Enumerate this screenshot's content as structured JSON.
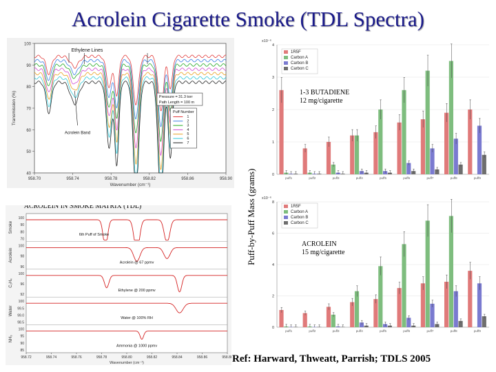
{
  "title": "Acrolein Cigarette Smoke (TDL Spectra)",
  "ylabel_mass": "Puff-by-Puff Mass (grams)",
  "reference": "Ref: Harward, Thweatt, Parrish; TDLS 2005",
  "chart_data": [
    {
      "type": "line",
      "id": "transmission",
      "xlabel": "Wavenumber (cm⁻¹)",
      "ylabel": "Transmission (%)",
      "xlim": [
        958.7,
        958.9
      ],
      "ylim": [
        40,
        100
      ],
      "xticks": [
        "958.70",
        "958.74",
        "958.78",
        "958.82",
        "958.86",
        "958.90"
      ],
      "yticks": [
        "40",
        "50",
        "60",
        "70",
        "80",
        "90",
        "100"
      ],
      "annotations": {
        "ethylene": "Ethylene Lines",
        "acrolein_band": "Acrolein Band"
      },
      "info_box": [
        "Pressure     = 31.3 torr",
        "Path Length = 100 m"
      ],
      "legend_title": "Puff Number",
      "dips": [
        {
          "x": 958.715,
          "w": 0.004,
          "d": [
            8,
            9,
            10,
            11,
            12,
            13,
            14
          ]
        },
        {
          "x": 958.742,
          "w": 0.006,
          "d": [
            5,
            6,
            6,
            7,
            8,
            9,
            10
          ]
        },
        {
          "x": 958.778,
          "w": 0.004,
          "d": [
            14,
            17,
            20,
            22,
            25,
            27,
            30
          ]
        },
        {
          "x": 958.786,
          "w": 0.003,
          "d": [
            18,
            22,
            25,
            28,
            31,
            34,
            38
          ]
        },
        {
          "x": 958.806,
          "w": 0.004,
          "d": [
            22,
            27,
            32,
            37,
            42,
            47,
            52
          ]
        },
        {
          "x": 958.832,
          "w": 0.004,
          "d": [
            25,
            30,
            35,
            40,
            45,
            50,
            56
          ]
        },
        {
          "x": 958.842,
          "w": 0.003,
          "d": [
            15,
            19,
            22,
            25,
            28,
            32,
            35
          ]
        }
      ],
      "series": [
        {
          "name": "1",
          "color": "#e23a3a",
          "base": 94
        },
        {
          "name": "2",
          "color": "#3a7ee2",
          "base": 92
        },
        {
          "name": "3",
          "color": "#22a822",
          "base": 90
        },
        {
          "name": "4",
          "color": "#d04ad0",
          "base": 88
        },
        {
          "name": "5",
          "color": "#e8a020",
          "base": 86
        },
        {
          "name": "6",
          "color": "#30c8d8",
          "base": 84
        },
        {
          "name": "7",
          "color": "#222222",
          "base": 82
        }
      ]
    },
    {
      "type": "line",
      "id": "smoke_matrix",
      "title": "ACROLEIN IN SMOKE MATRIX (TDL)",
      "xlabel": "Wavenumber (cm⁻¹)",
      "xlim": [
        958.72,
        958.88
      ],
      "xticks": [
        "958.72",
        "958.74",
        "958.76",
        "958.78",
        "958.80",
        "958.82",
        "958.84",
        "958.86",
        "958.88"
      ],
      "series": [
        {
          "name": "Smoke",
          "label": "6th Puff of Smoke",
          "yticks": [
            "100",
            "90",
            "80",
            "70"
          ],
          "dips": [
            [
              958.783,
              0.0025,
              40
            ],
            [
              958.808,
              0.003,
              46
            ],
            [
              958.832,
              0.003,
              34
            ]
          ]
        },
        {
          "name": "Acrolein",
          "label": "Acrolein @ 67 ppmv",
          "yticks": [
            "100",
            "98",
            "96"
          ],
          "dips": [
            [
              958.808,
              0.0035,
              20
            ],
            [
              958.832,
              0.0035,
              16
            ]
          ]
        },
        {
          "name": "C₂H₄",
          "label": "Ethylene @ 200 ppmv",
          "yticks": [
            "100",
            "96",
            "92"
          ],
          "dips": [
            [
              958.784,
              0.0025,
              18
            ],
            [
              958.842,
              0.0025,
              24
            ]
          ]
        },
        {
          "name": "Water",
          "label": "Water @ 100% RH",
          "yticks": [
            "100",
            "99.5",
            "99.0",
            "98.5"
          ],
          "dips": [
            [
              958.842,
              0.004,
              14
            ]
          ]
        },
        {
          "name": "NH₃",
          "label": "Ammonia @ 1000 ppmv",
          "yticks": [
            "100",
            "95",
            "90",
            "85"
          ],
          "dips": [
            [
              958.812,
              0.002,
              12
            ]
          ]
        }
      ]
    },
    {
      "type": "bar",
      "id": "butadiene",
      "annotation": [
        "1-3 BUTADIENE",
        "12 mg/cigarette"
      ],
      "ylabel_exp": "x10⁻⁶",
      "ylim": [
        0,
        4
      ],
      "yticks": [
        "0",
        "1",
        "2",
        "3",
        "4"
      ],
      "categories": [
        "puff1",
        "puff2",
        "puff3",
        "puff4",
        "puff5",
        "puff6",
        "puff7",
        "puff8",
        "puff9"
      ],
      "series": [
        {
          "name": "1R5F",
          "color": "#e07a7a",
          "values": [
            2.6,
            0.8,
            1.0,
            1.2,
            1.3,
            1.6,
            1.7,
            1.9,
            2.0
          ]
        },
        {
          "name": "Carbon A",
          "color": "#7ebd7e",
          "values": [
            0.05,
            0.05,
            0.3,
            1.2,
            2.0,
            2.6,
            3.2,
            3.5,
            0.0
          ]
        },
        {
          "name": "Carbon B",
          "color": "#7a7ad0",
          "values": [
            0.02,
            0.02,
            0.05,
            0.1,
            0.1,
            0.35,
            0.8,
            1.1,
            1.5
          ]
        },
        {
          "name": "Carbon C",
          "color": "#6e6e6e",
          "values": [
            0.02,
            0.02,
            0.02,
            0.05,
            0.05,
            0.1,
            0.15,
            0.3,
            0.6
          ]
        }
      ]
    },
    {
      "type": "bar",
      "id": "acrolein",
      "annotation": [
        "ACROLEIN",
        "15 mg/cigarette"
      ],
      "ylabel_exp": "x10⁻⁶",
      "ylim": [
        0,
        8
      ],
      "yticks": [
        "0",
        "2",
        "4",
        "6",
        "8"
      ],
      "categories": [
        "puff1",
        "puff2",
        "puff3",
        "puff4",
        "puff5",
        "puff6",
        "puff7",
        "puff8",
        "puff9"
      ],
      "series": [
        {
          "name": "1R5F",
          "color": "#e07a7a",
          "values": [
            1.1,
            0.9,
            1.3,
            1.6,
            1.8,
            2.5,
            2.8,
            2.9,
            3.6
          ]
        },
        {
          "name": "Carbon A",
          "color": "#7ebd7e",
          "values": [
            0.05,
            0.05,
            0.8,
            2.3,
            3.9,
            5.3,
            6.8,
            7.1,
            0.0
          ]
        },
        {
          "name": "Carbon B",
          "color": "#7a7ad0",
          "values": [
            0.02,
            0.02,
            0.05,
            0.3,
            0.2,
            0.6,
            1.5,
            2.3,
            2.8
          ]
        },
        {
          "name": "Carbon C",
          "color": "#6e6e6e",
          "values": [
            0.02,
            0.02,
            0.02,
            0.1,
            0.1,
            0.1,
            0.2,
            0.4,
            0.7
          ]
        }
      ]
    }
  ]
}
